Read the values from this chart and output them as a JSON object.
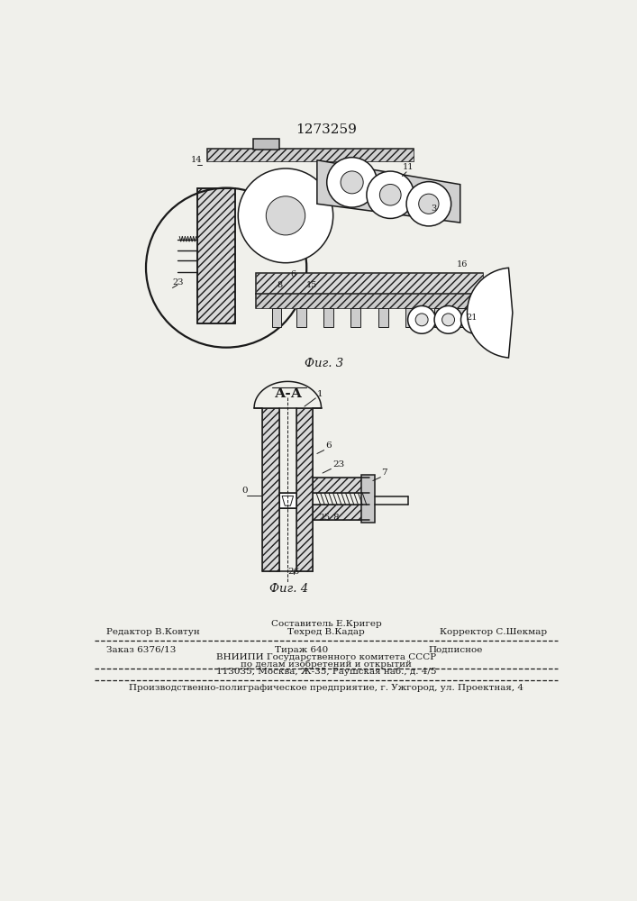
{
  "patent_number": "1273259",
  "bg_color": "#f0f0eb",
  "line_color": "#1a1a1a",
  "fig3_caption": "Фиг. 3",
  "fig4_title": "А-А",
  "fig4_caption": "Фиг. 4",
  "footer_line1_left": "Редактор В.Ковтун",
  "footer_line1_center_top": "Составитель Е.Кригер",
  "footer_line1_center": "Техред В.Кадар",
  "footer_line1_right": "Корректор С.Шекмар",
  "footer_line2_left": "Заказ 6376/13",
  "footer_line2_center": "Тираж 640",
  "footer_line2_right": "Подписное",
  "footer_line3": "ВНИИПИ Государственного комитета СССР",
  "footer_line4": "по делам изобретений и открытий",
  "footer_line5": "113035, Москва, Ж-35, Раушская наб., д. 4/5",
  "footer_bottom": "Производственно-полиграфическое предприятие, г. Ужгород, ул. Проектная, 4"
}
